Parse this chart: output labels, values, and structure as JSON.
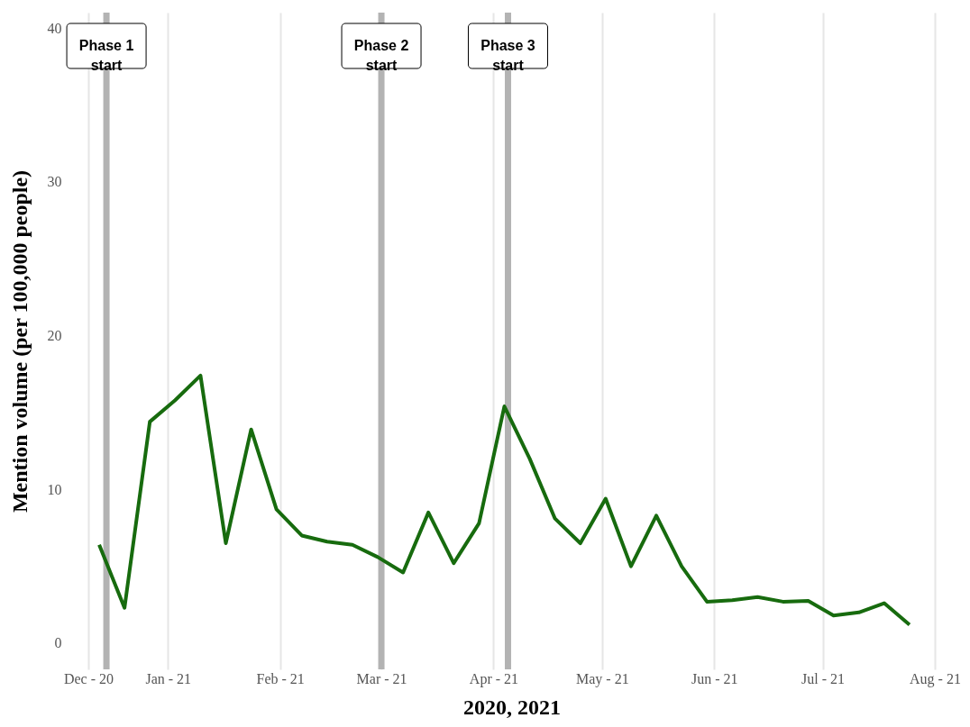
{
  "chart_data": {
    "type": "line",
    "xlabel": "2020, 2021",
    "ylabel": "Mention volume (per 100,000 people)",
    "x": [
      "2020-12-13",
      "2020-12-20",
      "2020-12-27",
      "2021-01-03",
      "2021-01-10",
      "2021-01-17",
      "2021-01-24",
      "2021-01-31",
      "2021-02-07",
      "2021-02-14",
      "2021-02-21",
      "2021-02-28",
      "2021-03-07",
      "2021-03-14",
      "2021-03-21",
      "2021-03-28",
      "2021-04-04",
      "2021-04-11",
      "2021-04-18",
      "2021-04-25",
      "2021-05-02",
      "2021-05-09",
      "2021-05-16",
      "2021-05-23",
      "2021-05-30",
      "2021-06-06",
      "2021-06-13",
      "2021-06-20",
      "2021-06-27",
      "2021-07-04",
      "2021-07-11",
      "2021-07-18",
      "2021-07-25"
    ],
    "series": [
      {
        "color": "#176b0e",
        "values": [
          6.4,
          2.3,
          14.4,
          15.8,
          17.4,
          6.5,
          13.9,
          8.7,
          7.0,
          6.6,
          6.4,
          5.6,
          4.6,
          8.5,
          5.2,
          7.8,
          15.4,
          12.0,
          8.1,
          6.5,
          9.4,
          5.0,
          8.3,
          5.0,
          2.7,
          2.8,
          3.0,
          2.7,
          2.75,
          1.8,
          2.0,
          2.6,
          1.2
        ]
      }
    ],
    "xlim": [
      "2020-12-10",
      "2021-08-01"
    ],
    "xticks": [
      {
        "value": "2020-12-10",
        "label": "Dec - 20"
      },
      {
        "value": "2021-01-01",
        "label": "Jan - 21"
      },
      {
        "value": "2021-02-01",
        "label": "Feb - 21"
      },
      {
        "value": "2021-03-01",
        "label": "Mar - 21"
      },
      {
        "value": "2021-04-01",
        "label": "Apr - 21"
      },
      {
        "value": "2021-05-01",
        "label": "May - 21"
      },
      {
        "value": "2021-06-01",
        "label": "Jun - 21"
      },
      {
        "value": "2021-07-01",
        "label": "Jul - 21"
      },
      {
        "value": "2021-08-01",
        "label": "Aug - 21"
      }
    ],
    "ylim": [
      -1.7,
      41
    ],
    "yticks": [
      0,
      10,
      20,
      30,
      40
    ],
    "grid": "x",
    "line_style": "solid",
    "marker": "none",
    "ref_lines": [
      {
        "axis": "x",
        "value": "2020-12-15",
        "label": "Phase 1\nstart",
        "color": "#b3b3b3"
      },
      {
        "axis": "x",
        "value": "2021-03-01",
        "label": "Phase 2\nstart",
        "color": "#b3b3b3"
      },
      {
        "axis": "x",
        "value": "2021-04-05",
        "label": "Phase 3\nstart",
        "color": "#b3b3b3"
      }
    ]
  }
}
